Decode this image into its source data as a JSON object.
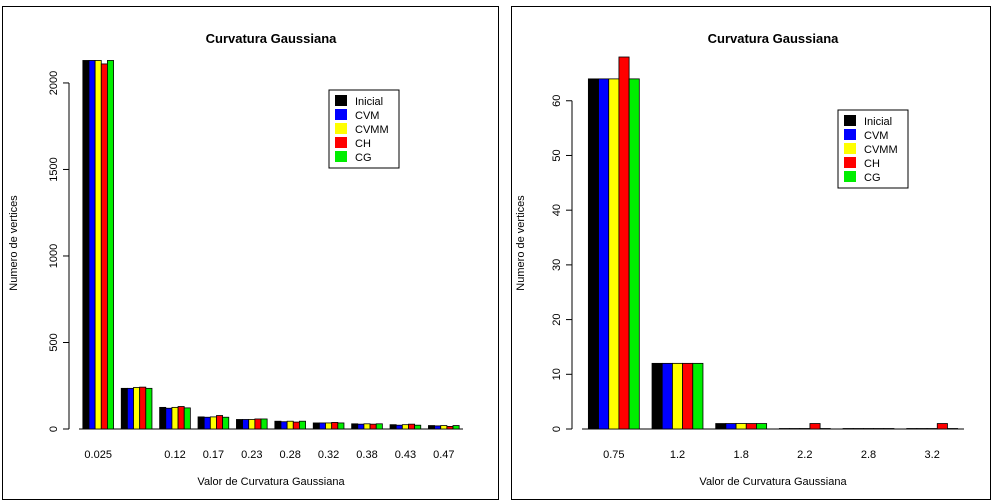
{
  "chart_data": [
    {
      "type": "bar",
      "title": "Curvatura Gaussiana",
      "xlabel": "Valor de Curvatura Gaussiana",
      "ylabel": "Numero de vertices",
      "categories": [
        "0.025",
        "",
        "0.12",
        "0.17",
        "0.23",
        "0.28",
        "0.32",
        "0.38",
        "0.43",
        "0.47"
      ],
      "ylim": [
        0,
        2150
      ],
      "yticks": [
        0,
        500,
        1000,
        1500,
        2000
      ],
      "legend_position": "top-right",
      "series": [
        {
          "name": "Inicial",
          "color": "#000000",
          "values": [
            2130,
            235,
            125,
            70,
            55,
            45,
            35,
            30,
            25,
            20
          ]
        },
        {
          "name": "CVM",
          "color": "#0000ff",
          "values": [
            2130,
            235,
            120,
            68,
            55,
            42,
            35,
            28,
            22,
            18
          ]
        },
        {
          "name": "CVMM",
          "color": "#ffff00",
          "values": [
            2130,
            240,
            125,
            70,
            55,
            45,
            35,
            30,
            25,
            20
          ]
        },
        {
          "name": "CH",
          "color": "#ff0000",
          "values": [
            2110,
            242,
            130,
            78,
            58,
            40,
            38,
            28,
            28,
            15
          ]
        },
        {
          "name": "CG",
          "color": "#00ee00",
          "values": [
            2130,
            235,
            122,
            68,
            58,
            45,
            35,
            30,
            22,
            20
          ]
        }
      ]
    },
    {
      "type": "bar",
      "title": "Curvatura Gaussiana",
      "xlabel": "Valor de Curvatura Gaussiana",
      "ylabel": "Numero de vertices",
      "categories": [
        "0.75",
        "1.2",
        "1.8",
        "2.2",
        "2.8",
        "3.2"
      ],
      "ylim": [
        0,
        68
      ],
      "yticks": [
        0,
        10,
        20,
        30,
        40,
        50,
        60
      ],
      "legend_position": "top-right",
      "series": [
        {
          "name": "Inicial",
          "color": "#000000",
          "values": [
            64,
            12,
            1,
            0,
            0,
            0
          ]
        },
        {
          "name": "CVM",
          "color": "#0000ff",
          "values": [
            64,
            12,
            1,
            0,
            0,
            0
          ]
        },
        {
          "name": "CVMM",
          "color": "#ffff00",
          "values": [
            64,
            12,
            1,
            0,
            0,
            0
          ]
        },
        {
          "name": "CH",
          "color": "#ff0000",
          "values": [
            68,
            12,
            1,
            1,
            0,
            1
          ]
        },
        {
          "name": "CG",
          "color": "#00ee00",
          "values": [
            64,
            12,
            1,
            0,
            0,
            0
          ]
        }
      ]
    }
  ]
}
